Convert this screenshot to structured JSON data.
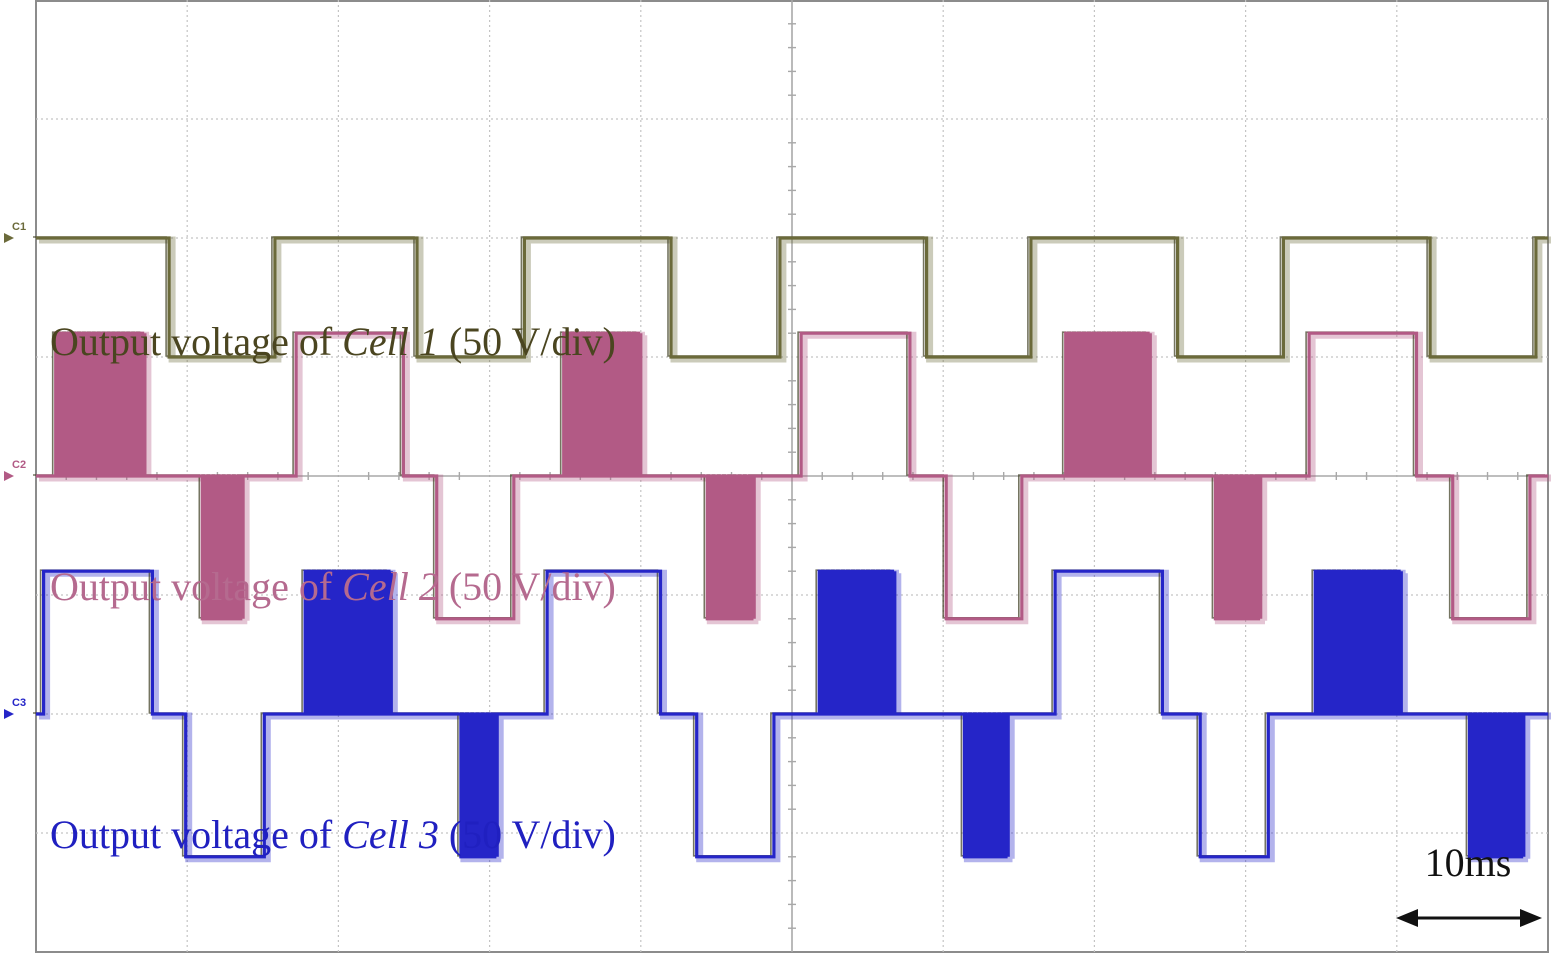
{
  "chart_data": {
    "type": "line",
    "title": "",
    "xlabel": "",
    "ylabel": "",
    "grid": true,
    "timebase": {
      "label": "10ms",
      "value_ms": 10
    },
    "x_unit": "ms",
    "xlim": [
      0,
      100
    ],
    "y_unit": "div",
    "ylim": [
      -4,
      4
    ],
    "channels": [
      {
        "id": "C1",
        "marker": "C1",
        "color": "#6b6a3a",
        "label_prefix": "Output voltage of ",
        "label_cell": "Cell 1",
        "label_suffix": " (50 V/div)",
        "label_color": "#4a4520",
        "ground_div": 2.0,
        "scale": "50 V/div",
        "segments": [
          {
            "t": [
              0,
              8.8
            ],
            "v": 0
          },
          {
            "t": [
              8.8,
              15.8
            ],
            "v": -1
          },
          {
            "t": [
              15.8,
              25.2
            ],
            "v": 0
          },
          {
            "t": [
              25.2,
              32.3
            ],
            "v": -1
          },
          {
            "t": [
              32.3,
              42.0
            ],
            "v": 0
          },
          {
            "t": [
              42.0,
              49.2
            ],
            "v": -1
          },
          {
            "t": [
              49.2,
              58.9
            ],
            "v": 0
          },
          {
            "t": [
              58.9,
              65.8
            ],
            "v": -1
          },
          {
            "t": [
              65.8,
              75.5
            ],
            "v": 0
          },
          {
            "t": [
              75.5,
              82.5
            ],
            "v": -1
          },
          {
            "t": [
              82.5,
              92.2
            ],
            "v": 0
          },
          {
            "t": [
              92.2,
              99.2
            ],
            "v": -1
          },
          {
            "t": [
              99.2,
              100
            ],
            "v": 0
          }
        ]
      },
      {
        "id": "C2",
        "marker": "C2",
        "color": "#b25a85",
        "label_prefix": "Output voltage of ",
        "label_cell": "Cell 2",
        "label_suffix": " (50 V/div)",
        "label_color": "#b56a8f",
        "ground_div": 0.0,
        "scale": "50 V/div",
        "segments": [
          {
            "t": [
              0,
              1.3
            ],
            "v": 0
          },
          {
            "t": [
              1.3,
              7.2
            ],
            "v": 1.2,
            "pwm": true
          },
          {
            "t": [
              7.2,
              11.0
            ],
            "v": 0
          },
          {
            "t": [
              11.0,
              13.7
            ],
            "v": -1.2,
            "pwm": true
          },
          {
            "t": [
              13.7,
              17.2
            ],
            "v": 0
          },
          {
            "t": [
              17.2,
              24.3
            ],
            "v": 1.2
          },
          {
            "t": [
              24.3,
              26.5
            ],
            "v": 0
          },
          {
            "t": [
              26.5,
              31.6
            ],
            "v": -1.2
          },
          {
            "t": [
              31.6,
              34.9
            ],
            "v": 0
          },
          {
            "t": [
              34.9,
              40.0
            ],
            "v": 1.2,
            "pwm": true
          },
          {
            "t": [
              40.0,
              44.4
            ],
            "v": 0
          },
          {
            "t": [
              44.4,
              47.5
            ],
            "v": -1.2,
            "pwm": true
          },
          {
            "t": [
              47.5,
              50.6
            ],
            "v": 0
          },
          {
            "t": [
              50.6,
              57.8
            ],
            "v": 1.2
          },
          {
            "t": [
              57.8,
              60.2
            ],
            "v": 0
          },
          {
            "t": [
              60.2,
              65.2
            ],
            "v": -1.2
          },
          {
            "t": [
              65.2,
              68.1
            ],
            "v": 0
          },
          {
            "t": [
              68.1,
              73.7
            ],
            "v": 1.2,
            "pwm": true
          },
          {
            "t": [
              73.7,
              78.0
            ],
            "v": 0
          },
          {
            "t": [
              78.0,
              81.0
            ],
            "v": -1.2,
            "pwm": true
          },
          {
            "t": [
              81.0,
              84.2
            ],
            "v": 0
          },
          {
            "t": [
              84.2,
              91.3
            ],
            "v": 1.2
          },
          {
            "t": [
              91.3,
              93.7
            ],
            "v": 0
          },
          {
            "t": [
              93.7,
              98.8
            ],
            "v": -1.2
          },
          {
            "t": [
              98.8,
              100
            ],
            "v": 0
          }
        ]
      },
      {
        "id": "C3",
        "marker": "C3",
        "color": "#2525c8",
        "label_prefix": "Output voltage of ",
        "label_cell": "Cell 3",
        "label_suffix": " (50 V/div)",
        "label_color": "#2020c0",
        "ground_div": -2.0,
        "scale": "50 V/div",
        "segments": [
          {
            "t": [
              0,
              0.5
            ],
            "v": 0
          },
          {
            "t": [
              0.5,
              7.7
            ],
            "v": 1.2
          },
          {
            "t": [
              7.7,
              9.9
            ],
            "v": 0
          },
          {
            "t": [
              9.9,
              15.1
            ],
            "v": -1.2
          },
          {
            "t": [
              15.1,
              17.8
            ],
            "v": 0
          },
          {
            "t": [
              17.8,
              23.5
            ],
            "v": 1.2,
            "pwm": true
          },
          {
            "t": [
              23.5,
              28.1
            ],
            "v": 0
          },
          {
            "t": [
              28.1,
              30.5
            ],
            "v": -1.2,
            "pwm": true
          },
          {
            "t": [
              30.5,
              33.8
            ],
            "v": 0
          },
          {
            "t": [
              33.8,
              41.3
            ],
            "v": 1.2
          },
          {
            "t": [
              41.3,
              43.7
            ],
            "v": 0
          },
          {
            "t": [
              43.7,
              48.8
            ],
            "v": -1.2
          },
          {
            "t": [
              48.8,
              51.8
            ],
            "v": 0
          },
          {
            "t": [
              51.8,
              56.8
            ],
            "v": 1.2,
            "pwm": true
          },
          {
            "t": [
              56.8,
              61.4
            ],
            "v": 0
          },
          {
            "t": [
              61.4,
              64.3
            ],
            "v": -1.2,
            "pwm": true
          },
          {
            "t": [
              64.3,
              67.4
            ],
            "v": 0
          },
          {
            "t": [
              67.4,
              74.5
            ],
            "v": 1.2
          },
          {
            "t": [
              74.5,
              77.0
            ],
            "v": 0
          },
          {
            "t": [
              77.0,
              81.5
            ],
            "v": -1.2
          },
          {
            "t": [
              81.5,
              84.6
            ],
            "v": 0
          },
          {
            "t": [
              84.6,
              90.3
            ],
            "v": 1.2,
            "pwm": true
          },
          {
            "t": [
              90.3,
              94.8
            ],
            "v": 0
          },
          {
            "t": [
              94.8,
              98.4
            ],
            "v": -1.2,
            "pwm": true
          },
          {
            "t": [
              98.4,
              100
            ],
            "v": 0
          }
        ]
      }
    ]
  }
}
